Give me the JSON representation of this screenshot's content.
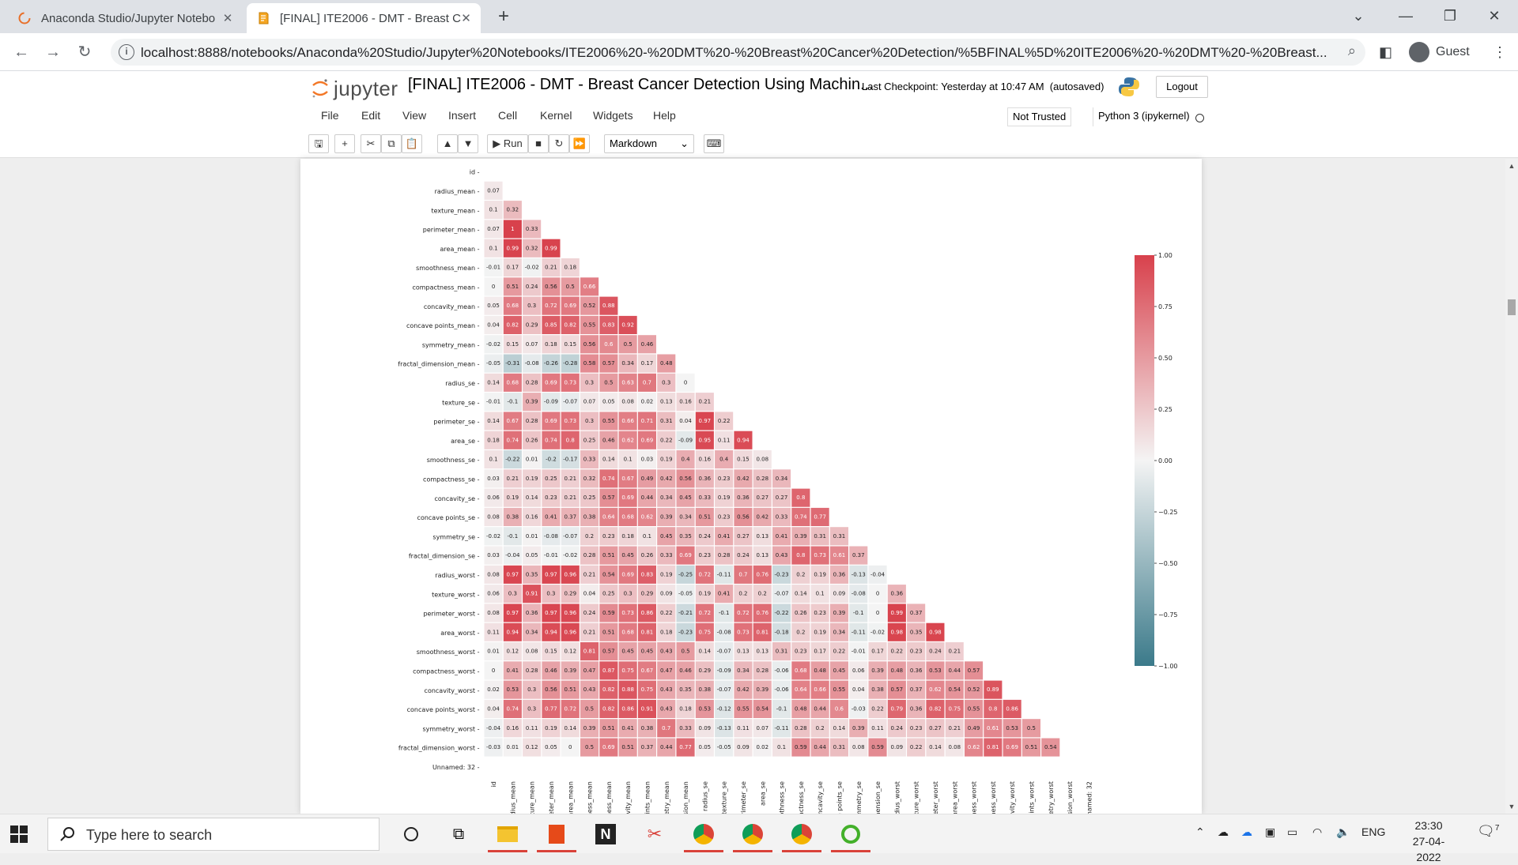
{
  "browser": {
    "tabs": [
      {
        "title": "Anaconda Studio/Jupyter Notebo",
        "active": false
      },
      {
        "title": "[FINAL] ITE2006 - DMT - Breast C",
        "active": true
      }
    ],
    "url": "localhost:8888/notebooks/Anaconda%20Studio/Jupyter%20Notebooks/ITE2006%20-%20DMT%20-%20Breast%20Cancer%20Detection/%5BFINAL%5D%20ITE2006%20-%20DMT%20-%20Breast...",
    "profile": "Guest"
  },
  "jupyter": {
    "logo_text": "jupyter",
    "notebook_title": "[FINAL] ITE2006 - DMT - Breast Cancer Detection Using Machin...",
    "checkpoint": "Last Checkpoint: Yesterday at 10:47 AM",
    "autosaved": "(autosaved)",
    "logout_label": "Logout",
    "menu": [
      "File",
      "Edit",
      "View",
      "Insert",
      "Cell",
      "Kernel",
      "Widgets",
      "Help"
    ],
    "trust_badge": "Not Trusted",
    "kernel_name": "Python 3 (ipykernel)",
    "run_label": "Run",
    "cell_type": "Markdown"
  },
  "chart_data": {
    "type": "heatmap",
    "labels": [
      "id",
      "radius_mean",
      "texture_mean",
      "perimeter_mean",
      "area_mean",
      "smoothness_mean",
      "compactness_mean",
      "concavity_mean",
      "concave points_mean",
      "symmetry_mean",
      "fractal_dimension_mean",
      "radius_se",
      "texture_se",
      "perimeter_se",
      "area_se",
      "smoothness_se",
      "compactness_se",
      "concavity_se",
      "concave points_se",
      "symmetry_se",
      "fractal_dimension_se",
      "radius_worst",
      "texture_worst",
      "perimeter_worst",
      "area_worst",
      "smoothness_worst",
      "compactness_worst",
      "concavity_worst",
      "concave points_worst",
      "symmetry_worst",
      "fractal_dimension_worst",
      "Unnamed: 32"
    ],
    "x_tick_labels_visible": [
      "id",
      "radius_mean",
      "texture_mean",
      "rimeter_mean",
      "area_mean",
      "othness_mean",
      "ctness_mean",
      "ncavity_mean",
      "e points_mean",
      "mmetry_mean",
      "ension_mean",
      "radius_se",
      "texture_se",
      "perimeter_se",
      "area_se",
      "noothness_se",
      "mpactness_se",
      "concavity_se",
      "ave points_se",
      "symmetry_se",
      "dimension_se",
      "radius_worst",
      "texture_worst",
      "rimeter_worst",
      "area_worst",
      "othness_worst",
      "ctness_worst",
      "ncavity_worst",
      "e points_worst",
      "mmetry_worst",
      "ension_worst",
      "Unnamed: 32"
    ],
    "mask": "upper triangle including diagonal",
    "values": [
      [],
      [
        0.07
      ],
      [
        0.1,
        0.32
      ],
      [
        0.07,
        1,
        0.33
      ],
      [
        0.1,
        0.99,
        0.32,
        0.99
      ],
      [
        -0.01,
        0.17,
        -0.02,
        0.21,
        0.18
      ],
      [
        0,
        0.51,
        0.24,
        0.56,
        0.5,
        0.66
      ],
      [
        0.05,
        0.68,
        0.3,
        0.72,
        0.69,
        0.52,
        0.88
      ],
      [
        0.04,
        0.82,
        0.29,
        0.85,
        0.82,
        0.55,
        0.83,
        0.92
      ],
      [
        -0.02,
        0.15,
        0.07,
        0.18,
        0.15,
        0.56,
        0.6,
        0.5,
        0.46
      ],
      [
        -0.05,
        -0.31,
        -0.08,
        -0.26,
        -0.28,
        0.58,
        0.57,
        0.34,
        0.17,
        0.48
      ],
      [
        0.14,
        0.68,
        0.28,
        0.69,
        0.73,
        0.3,
        0.5,
        0.63,
        0.7,
        0.3,
        0
      ],
      [
        -0.01,
        -0.1,
        0.39,
        -0.09,
        -0.07,
        0.07,
        0.05,
        0.08,
        0.02,
        0.13,
        0.16,
        0.21
      ],
      [
        0.14,
        0.67,
        0.28,
        0.69,
        0.73,
        0.3,
        0.55,
        0.66,
        0.71,
        0.31,
        0.04,
        0.97,
        0.22
      ],
      [
        0.18,
        0.74,
        0.26,
        0.74,
        0.8,
        0.25,
        0.46,
        0.62,
        0.69,
        0.22,
        -0.09,
        0.95,
        0.11,
        0.94
      ],
      [
        0.1,
        -0.22,
        0.01,
        -0.2,
        -0.17,
        0.33,
        0.14,
        0.1,
        0.03,
        0.19,
        0.4,
        0.16,
        0.4,
        0.15,
        0.08
      ],
      [
        0.03,
        0.21,
        0.19,
        0.25,
        0.21,
        0.32,
        0.74,
        0.67,
        0.49,
        0.42,
        0.56,
        0.36,
        0.23,
        0.42,
        0.28,
        0.34
      ],
      [
        0.06,
        0.19,
        0.14,
        0.23,
        0.21,
        0.25,
        0.57,
        0.69,
        0.44,
        0.34,
        0.45,
        0.33,
        0.19,
        0.36,
        0.27,
        0.27,
        0.8
      ],
      [
        0.08,
        0.38,
        0.16,
        0.41,
        0.37,
        0.38,
        0.64,
        0.68,
        0.62,
        0.39,
        0.34,
        0.51,
        0.23,
        0.56,
        0.42,
        0.33,
        0.74,
        0.77
      ],
      [
        -0.02,
        -0.1,
        0.01,
        -0.08,
        -0.07,
        0.2,
        0.23,
        0.18,
        0.1,
        0.45,
        0.35,
        0.24,
        0.41,
        0.27,
        0.13,
        0.41,
        0.39,
        0.31,
        0.31
      ],
      [
        0.03,
        -0.04,
        0.05,
        -0.01,
        -0.02,
        0.28,
        0.51,
        0.45,
        0.26,
        0.33,
        0.69,
        0.23,
        0.28,
        0.24,
        0.13,
        0.43,
        0.8,
        0.73,
        0.61,
        0.37
      ],
      [
        0.08,
        0.97,
        0.35,
        0.97,
        0.96,
        0.21,
        0.54,
        0.69,
        0.83,
        0.19,
        -0.25,
        0.72,
        -0.11,
        0.7,
        0.76,
        -0.23,
        0.2,
        0.19,
        0.36,
        -0.13,
        -0.04
      ],
      [
        0.06,
        0.3,
        0.91,
        0.3,
        0.29,
        0.04,
        0.25,
        0.3,
        0.29,
        0.09,
        -0.05,
        0.19,
        0.41,
        0.2,
        0.2,
        -0.07,
        0.14,
        0.1,
        0.09,
        -0.08,
        0,
        0.36
      ],
      [
        0.08,
        0.97,
        0.36,
        0.97,
        0.96,
        0.24,
        0.59,
        0.73,
        0.86,
        0.22,
        -0.21,
        0.72,
        -0.1,
        0.72,
        0.76,
        -0.22,
        0.26,
        0.23,
        0.39,
        -0.1,
        0,
        0.99,
        0.37
      ],
      [
        0.11,
        0.94,
        0.34,
        0.94,
        0.96,
        0.21,
        0.51,
        0.68,
        0.81,
        0.18,
        -0.23,
        0.75,
        -0.08,
        0.73,
        0.81,
        -0.18,
        0.2,
        0.19,
        0.34,
        -0.11,
        -0.02,
        0.98,
        0.35,
        0.98
      ],
      [
        0.01,
        0.12,
        0.08,
        0.15,
        0.12,
        0.81,
        0.57,
        0.45,
        0.45,
        0.43,
        0.5,
        0.14,
        -0.07,
        0.13,
        0.13,
        0.31,
        0.23,
        0.17,
        0.22,
        -0.01,
        0.17,
        0.22,
        0.23,
        0.24,
        0.21
      ],
      [
        0,
        0.41,
        0.28,
        0.46,
        0.39,
        0.47,
        0.87,
        0.75,
        0.67,
        0.47,
        0.46,
        0.29,
        -0.09,
        0.34,
        0.28,
        -0.06,
        0.68,
        0.48,
        0.45,
        0.06,
        0.39,
        0.48,
        0.36,
        0.53,
        0.44,
        0.57
      ],
      [
        0.02,
        0.53,
        0.3,
        0.56,
        0.51,
        0.43,
        0.82,
        0.88,
        0.75,
        0.43,
        0.35,
        0.38,
        -0.07,
        0.42,
        0.39,
        -0.06,
        0.64,
        0.66,
        0.55,
        0.04,
        0.38,
        0.57,
        0.37,
        0.62,
        0.54,
        0.52,
        0.89
      ],
      [
        0.04,
        0.74,
        0.3,
        0.77,
        0.72,
        0.5,
        0.82,
        0.86,
        0.91,
        0.43,
        0.18,
        0.53,
        -0.12,
        0.55,
        0.54,
        -0.1,
        0.48,
        0.44,
        0.6,
        -0.03,
        0.22,
        0.79,
        0.36,
        0.82,
        0.75,
        0.55,
        0.8,
        0.86
      ],
      [
        -0.04,
        0.16,
        0.11,
        0.19,
        0.14,
        0.39,
        0.51,
        0.41,
        0.38,
        0.7,
        0.33,
        0.09,
        -0.13,
        0.11,
        0.07,
        -0.11,
        0.28,
        0.2,
        0.14,
        0.39,
        0.11,
        0.24,
        0.23,
        0.27,
        0.21,
        0.49,
        0.61,
        0.53,
        0.5
      ],
      [
        -0.03,
        0.01,
        0.12,
        0.05,
        0,
        0.5,
        0.69,
        0.51,
        0.37,
        0.44,
        0.77,
        0.05,
        -0.05,
        0.09,
        0.02,
        0.1,
        0.59,
        0.44,
        0.31,
        0.08,
        0.59,
        0.09,
        0.22,
        0.14,
        0.08,
        0.62,
        0.81,
        0.69,
        0.51,
        0.54
      ],
      []
    ],
    "colorbar": {
      "min": -1,
      "max": 1,
      "ticks": [
        "1.00",
        "0.75",
        "0.50",
        "0.25",
        "0.00",
        "−0.25",
        "−0.50",
        "−0.75",
        "−1.00"
      ]
    },
    "colormap": {
      "negative": "#3b7a8a",
      "neutral": "#f4f4f4",
      "positive": "#d8414c"
    }
  },
  "taskbar": {
    "search_placeholder": "Type here to search",
    "lang": "ENG",
    "time": "23:30",
    "date": "27-04-2022",
    "notification_count": "7"
  }
}
